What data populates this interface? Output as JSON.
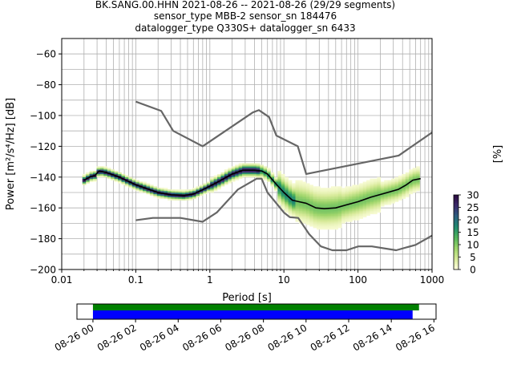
{
  "title_lines": [
    "BK.SANG.00.HHN   2021-08-26 -- 2021-08-26  (29/29 segments)",
    "sensor_type MBB-2 sensor_sn 184476",
    "datalogger_type Q330S+ datalogger_sn 6433"
  ],
  "chart_data": [
    {
      "type": "heatmap",
      "xlabel": "Period [s]",
      "ylabel": "Power [m²/s⁴/Hz] [dB]",
      "xscale": "log",
      "xlim": [
        0.01,
        1000
      ],
      "ylim": [
        -200,
        -50
      ],
      "grid": true,
      "x_ticks": [
        {
          "v": 0.01,
          "label": "0.01"
        },
        {
          "v": 0.1,
          "label": "0.1"
        },
        {
          "v": 1,
          "label": "1"
        },
        {
          "v": 10,
          "label": "10"
        },
        {
          "v": 100,
          "label": "100"
        },
        {
          "v": 1000,
          "label": "1000"
        }
      ],
      "y_ticks": [
        {
          "v": -60,
          "label": "−60"
        },
        {
          "v": -80,
          "label": "−80"
        },
        {
          "v": -100,
          "label": "−100"
        },
        {
          "v": -120,
          "label": "−120"
        },
        {
          "v": -140,
          "label": "−140"
        },
        {
          "v": -160,
          "label": "−160"
        },
        {
          "v": -180,
          "label": "−180"
        },
        {
          "v": -200,
          "label": "−200"
        }
      ],
      "series": [
        {
          "role": "NHNM",
          "color": "#666666",
          "points": [
            [
              0.1,
              -91
            ],
            [
              0.22,
              -97
            ],
            [
              0.32,
              -110
            ],
            [
              0.8,
              -120
            ],
            [
              3.8,
              -98
            ],
            [
              4.6,
              -96.5
            ],
            [
              6.3,
              -101
            ],
            [
              7.9,
              -113
            ],
            [
              15.4,
              -120
            ],
            [
              20,
              -138
            ],
            [
              354.8,
              -126
            ],
            [
              1000,
              -111
            ]
          ]
        },
        {
          "role": "NLNM",
          "color": "#666666",
          "points": [
            [
              0.1,
              -168
            ],
            [
              0.17,
              -166.5
            ],
            [
              0.4,
              -166.5
            ],
            [
              0.8,
              -169
            ],
            [
              1.24,
              -163
            ],
            [
              2.4,
              -148
            ],
            [
              4.3,
              -141
            ],
            [
              5,
              -141
            ],
            [
              6,
              -150
            ],
            [
              10,
              -163
            ],
            [
              12,
              -166
            ],
            [
              15.6,
              -166.5
            ],
            [
              21.9,
              -177
            ],
            [
              31.6,
              -185
            ],
            [
              45,
              -187.5
            ],
            [
              70,
              -187.5
            ],
            [
              101,
              -185
            ],
            [
              154,
              -185
            ],
            [
              328,
              -187.5
            ],
            [
              600,
              -184
            ],
            [
              1000,
              -178
            ]
          ]
        },
        {
          "role": "mode",
          "color": "#000000",
          "points": [
            [
              0.02,
              -142
            ],
            [
              0.025,
              -139.5
            ],
            [
              0.028,
              -139
            ],
            [
              0.032,
              -136
            ],
            [
              0.04,
              -137
            ],
            [
              0.06,
              -140
            ],
            [
              0.1,
              -145
            ],
            [
              0.2,
              -150
            ],
            [
              0.3,
              -151.5
            ],
            [
              0.45,
              -152
            ],
            [
              0.6,
              -151
            ],
            [
              0.9,
              -147
            ],
            [
              1.3,
              -143
            ],
            [
              2,
              -138
            ],
            [
              2.8,
              -135.5
            ],
            [
              4,
              -135.5
            ],
            [
              5,
              -136
            ],
            [
              6,
              -138
            ],
            [
              8,
              -145
            ],
            [
              10,
              -150
            ],
            [
              13,
              -155
            ],
            [
              16,
              -156
            ],
            [
              20,
              -157
            ],
            [
              27,
              -160
            ],
            [
              35,
              -160.5
            ],
            [
              50,
              -160
            ],
            [
              70,
              -158
            ],
            [
              100,
              -156
            ],
            [
              150,
              -153
            ],
            [
              250,
              -150
            ],
            [
              350,
              -148
            ],
            [
              450,
              -145
            ],
            [
              550,
              -142
            ],
            [
              700,
              -141
            ]
          ]
        }
      ],
      "colorbar": {
        "label": "[%]",
        "min": 0,
        "max": 30,
        "ticks": [
          0,
          5,
          10,
          15,
          20,
          25,
          30
        ],
        "colormap": [
          "#ffffe0",
          "#d8ea9a",
          "#9fd56b",
          "#52b45a",
          "#1f8a6e",
          "#2a5e7f",
          "#3b2a6b",
          "#2b0b3f"
        ]
      }
    },
    {
      "type": "timeline",
      "x_tick_labels": [
        "08-26 00",
        "08-26 02",
        "08-26 04",
        "08-26 06",
        "08-26 08",
        "08-26 10",
        "08-26 12",
        "08-26 14",
        "08-26 16"
      ],
      "x_hours": [
        0,
        2,
        4,
        6,
        8,
        10,
        12,
        14,
        16
      ],
      "xlim_hours": [
        -0.75,
        16.1
      ],
      "bars": [
        {
          "role": "data coverage",
          "color": "#008000",
          "start_hour": 0,
          "end_hour": 15.3
        },
        {
          "role": "processed segments",
          "color": "#0000ff",
          "start_hour": 0,
          "end_hour": 15.0
        }
      ]
    }
  ]
}
